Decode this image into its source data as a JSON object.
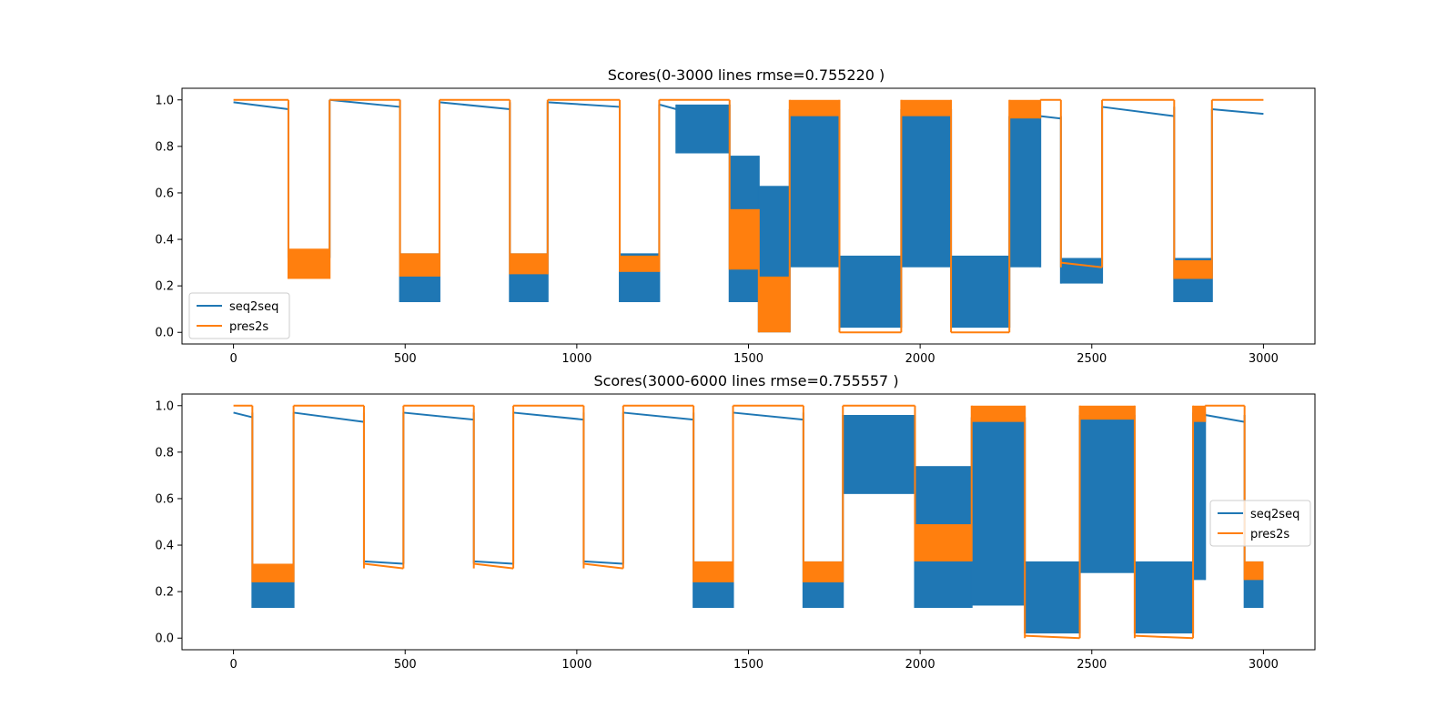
{
  "chart_data": [
    {
      "type": "line",
      "title": "Scores(0-3000 lines rmse=0.755220 )",
      "xlim": [
        -150,
        3150
      ],
      "ylim": [
        -0.05,
        1.05
      ],
      "xticks": [
        0,
        500,
        1000,
        1500,
        2000,
        2500,
        3000
      ],
      "xtick_labels": [
        "0",
        "500",
        "1000",
        "1500",
        "2000",
        "2500",
        "3000"
      ],
      "yticks": [
        0.0,
        0.2,
        0.4,
        0.6,
        0.8,
        1.0
      ],
      "ytick_labels": [
        "0.0",
        "0.2",
        "0.4",
        "0.6",
        "0.8",
        "1.0"
      ],
      "grid": false,
      "legend_position": "lower-left",
      "series": [
        {
          "name": "seq2seq",
          "color": "#1f77b4",
          "segments": [
            {
              "x0": 0,
              "x1": 160,
              "low": 0.96,
              "high": 0.99
            },
            {
              "x0": 160,
              "x1": 280,
              "low": 0.32,
              "high": 0.35
            },
            {
              "x0": 280,
              "x1": 485,
              "low": 0.97,
              "high": 1.0
            },
            {
              "x0": 485,
              "x1": 600,
              "low": 0.13,
              "high": 0.34
            },
            {
              "x0": 600,
              "x1": 805,
              "low": 0.96,
              "high": 0.99
            },
            {
              "x0": 805,
              "x1": 915,
              "low": 0.13,
              "high": 0.34
            },
            {
              "x0": 915,
              "x1": 1125,
              "low": 0.97,
              "high": 0.99
            },
            {
              "x0": 1125,
              "x1": 1240,
              "low": 0.13,
              "high": 0.34
            },
            {
              "x0": 1240,
              "x1": 1290,
              "low": 0.96,
              "high": 0.98
            },
            {
              "x0": 1290,
              "x1": 1445,
              "low": 0.77,
              "high": 0.98
            },
            {
              "x0": 1445,
              "x1": 1530,
              "low": 0.13,
              "high": 0.76
            },
            {
              "x0": 1530,
              "x1": 1620,
              "low": 0.0,
              "high": 0.63
            },
            {
              "x0": 1620,
              "x1": 1765,
              "low": 0.28,
              "high": 0.96
            },
            {
              "x0": 1765,
              "x1": 1945,
              "low": 0.02,
              "high": 0.33
            },
            {
              "x0": 1945,
              "x1": 2090,
              "low": 0.28,
              "high": 0.96
            },
            {
              "x0": 2090,
              "x1": 2260,
              "low": 0.02,
              "high": 0.33
            },
            {
              "x0": 2260,
              "x1": 2350,
              "low": 0.28,
              "high": 0.93
            },
            {
              "x0": 2350,
              "x1": 2410,
              "low": 0.92,
              "high": 0.93
            },
            {
              "x0": 2410,
              "x1": 2530,
              "low": 0.21,
              "high": 0.32
            },
            {
              "x0": 2530,
              "x1": 2740,
              "low": 0.93,
              "high": 0.97
            },
            {
              "x0": 2740,
              "x1": 2850,
              "low": 0.13,
              "high": 0.32
            },
            {
              "x0": 2850,
              "x1": 3000,
              "low": 0.94,
              "high": 0.96
            }
          ]
        },
        {
          "name": "pres2s",
          "color": "#ff7f0e",
          "segments": [
            {
              "x0": 0,
              "x1": 160,
              "low": 1.0,
              "high": 1.0
            },
            {
              "x0": 160,
              "x1": 280,
              "low": 0.23,
              "high": 0.36
            },
            {
              "x0": 280,
              "x1": 485,
              "low": 1.0,
              "high": 1.0
            },
            {
              "x0": 485,
              "x1": 600,
              "low": 0.24,
              "high": 0.34
            },
            {
              "x0": 600,
              "x1": 805,
              "low": 1.0,
              "high": 1.0
            },
            {
              "x0": 805,
              "x1": 915,
              "low": 0.25,
              "high": 0.34
            },
            {
              "x0": 915,
              "x1": 1125,
              "low": 1.0,
              "high": 1.0
            },
            {
              "x0": 1125,
              "x1": 1240,
              "low": 0.26,
              "high": 0.33
            },
            {
              "x0": 1240,
              "x1": 1445,
              "low": 1.0,
              "high": 1.0
            },
            {
              "x0": 1445,
              "x1": 1530,
              "low": 0.27,
              "high": 0.53
            },
            {
              "x0": 1530,
              "x1": 1620,
              "low": 0.0,
              "high": 0.24
            },
            {
              "x0": 1620,
              "x1": 1765,
              "low": 0.93,
              "high": 1.0
            },
            {
              "x0": 1765,
              "x1": 1945,
              "low": 0.0,
              "high": 0.0
            },
            {
              "x0": 1945,
              "x1": 2090,
              "low": 0.93,
              "high": 1.0
            },
            {
              "x0": 2090,
              "x1": 2260,
              "low": 0.0,
              "high": 0.0
            },
            {
              "x0": 2260,
              "x1": 2350,
              "low": 0.92,
              "high": 1.0
            },
            {
              "x0": 2350,
              "x1": 2410,
              "low": 1.0,
              "high": 1.0
            },
            {
              "x0": 2410,
              "x1": 2530,
              "low": 0.28,
              "high": 0.3
            },
            {
              "x0": 2530,
              "x1": 2740,
              "low": 1.0,
              "high": 1.0
            },
            {
              "x0": 2740,
              "x1": 2850,
              "low": 0.23,
              "high": 0.31
            },
            {
              "x0": 2850,
              "x1": 3000,
              "low": 1.0,
              "high": 1.0
            }
          ]
        }
      ]
    },
    {
      "type": "line",
      "title": "Scores(3000-6000 lines rmse=0.755557 )",
      "xlim": [
        -150,
        3150
      ],
      "ylim": [
        -0.05,
        1.05
      ],
      "xticks": [
        0,
        500,
        1000,
        1500,
        2000,
        2500,
        3000
      ],
      "xtick_labels": [
        "0",
        "500",
        "1000",
        "1500",
        "2000",
        "2500",
        "3000"
      ],
      "yticks": [
        0.0,
        0.2,
        0.4,
        0.6,
        0.8,
        1.0
      ],
      "ytick_labels": [
        "0.0",
        "0.2",
        "0.4",
        "0.6",
        "0.8",
        "1.0"
      ],
      "grid": false,
      "legend_position": "center-right",
      "series": [
        {
          "name": "seq2seq",
          "color": "#1f77b4",
          "segments": [
            {
              "x0": 0,
              "x1": 55,
              "low": 0.95,
              "high": 0.97
            },
            {
              "x0": 55,
              "x1": 175,
              "low": 0.13,
              "high": 0.32
            },
            {
              "x0": 175,
              "x1": 380,
              "low": 0.93,
              "high": 0.97
            },
            {
              "x0": 380,
              "x1": 495,
              "low": 0.32,
              "high": 0.33
            },
            {
              "x0": 495,
              "x1": 700,
              "low": 0.94,
              "high": 0.97
            },
            {
              "x0": 700,
              "x1": 815,
              "low": 0.32,
              "high": 0.33
            },
            {
              "x0": 815,
              "x1": 1020,
              "low": 0.94,
              "high": 0.97
            },
            {
              "x0": 1020,
              "x1": 1135,
              "low": 0.32,
              "high": 0.33
            },
            {
              "x0": 1135,
              "x1": 1340,
              "low": 0.94,
              "high": 0.97
            },
            {
              "x0": 1340,
              "x1": 1455,
              "low": 0.13,
              "high": 0.33
            },
            {
              "x0": 1455,
              "x1": 1660,
              "low": 0.94,
              "high": 0.97
            },
            {
              "x0": 1660,
              "x1": 1775,
              "low": 0.13,
              "high": 0.33
            },
            {
              "x0": 1775,
              "x1": 1985,
              "low": 0.62,
              "high": 0.96
            },
            {
              "x0": 1985,
              "x1": 2150,
              "low": 0.13,
              "high": 0.74
            },
            {
              "x0": 2150,
              "x1": 2305,
              "low": 0.14,
              "high": 0.95
            },
            {
              "x0": 2305,
              "x1": 2465,
              "low": 0.02,
              "high": 0.33
            },
            {
              "x0": 2465,
              "x1": 2625,
              "low": 0.28,
              "high": 0.96
            },
            {
              "x0": 2625,
              "x1": 2795,
              "low": 0.02,
              "high": 0.33
            },
            {
              "x0": 2795,
              "x1": 2830,
              "low": 0.25,
              "high": 0.97
            },
            {
              "x0": 2830,
              "x1": 2945,
              "low": 0.93,
              "high": 0.96
            },
            {
              "x0": 2945,
              "x1": 3000,
              "low": 0.13,
              "high": 0.33
            }
          ]
        },
        {
          "name": "pres2s",
          "color": "#ff7f0e",
          "segments": [
            {
              "x0": 0,
              "x1": 55,
              "low": 1.0,
              "high": 1.0
            },
            {
              "x0": 55,
              "x1": 175,
              "low": 0.24,
              "high": 0.32
            },
            {
              "x0": 175,
              "x1": 380,
              "low": 1.0,
              "high": 1.0
            },
            {
              "x0": 380,
              "x1": 495,
              "low": 0.3,
              "high": 0.32
            },
            {
              "x0": 495,
              "x1": 700,
              "low": 1.0,
              "high": 1.0
            },
            {
              "x0": 700,
              "x1": 815,
              "low": 0.3,
              "high": 0.32
            },
            {
              "x0": 815,
              "x1": 1020,
              "low": 1.0,
              "high": 1.0
            },
            {
              "x0": 1020,
              "x1": 1135,
              "low": 0.3,
              "high": 0.32
            },
            {
              "x0": 1135,
              "x1": 1340,
              "low": 1.0,
              "high": 1.0
            },
            {
              "x0": 1340,
              "x1": 1455,
              "low": 0.24,
              "high": 0.33
            },
            {
              "x0": 1455,
              "x1": 1660,
              "low": 1.0,
              "high": 1.0
            },
            {
              "x0": 1660,
              "x1": 1775,
              "low": 0.24,
              "high": 0.33
            },
            {
              "x0": 1775,
              "x1": 1985,
              "low": 1.0,
              "high": 1.0
            },
            {
              "x0": 1985,
              "x1": 2150,
              "low": 0.33,
              "high": 0.49
            },
            {
              "x0": 2150,
              "x1": 2305,
              "low": 0.93,
              "high": 1.0
            },
            {
              "x0": 2305,
              "x1": 2465,
              "low": 0.0,
              "high": 0.01
            },
            {
              "x0": 2465,
              "x1": 2625,
              "low": 0.94,
              "high": 1.0
            },
            {
              "x0": 2625,
              "x1": 2795,
              "low": 0.0,
              "high": 0.01
            },
            {
              "x0": 2795,
              "x1": 2830,
              "low": 0.93,
              "high": 1.0
            },
            {
              "x0": 2830,
              "x1": 2945,
              "low": 1.0,
              "high": 1.0
            },
            {
              "x0": 2945,
              "x1": 3000,
              "low": 0.25,
              "high": 0.33
            }
          ]
        }
      ]
    }
  ]
}
